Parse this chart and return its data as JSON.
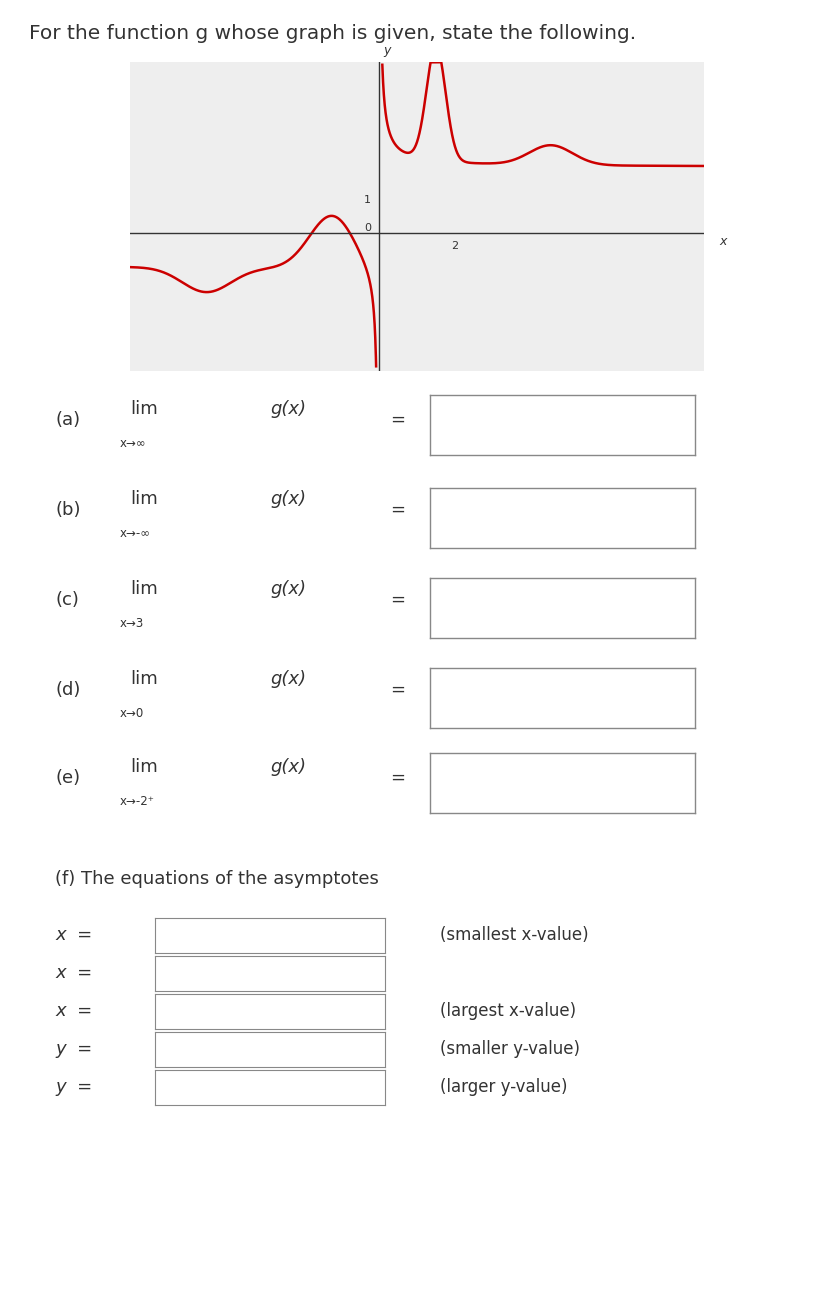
{
  "title": "For the function g whose graph is given, state the following.",
  "title_fontsize": 14.5,
  "background_color": "#ffffff",
  "graph": {
    "xlim": [
      -6.5,
      8.5
    ],
    "ylim": [
      -4.2,
      5.2
    ],
    "grid_color": "#c8c8c8",
    "axis_color": "#333333",
    "curve_color": "#cc0000",
    "curve_linewidth": 1.8,
    "bg_color": "#eeeeee"
  },
  "q_labels": [
    "(a)",
    "(b)",
    "(c)",
    "(d)",
    "(e)"
  ],
  "q_subs": [
    "x→∞",
    "x→-∞",
    "x→3",
    "x→0",
    "x→-2⁺"
  ],
  "asymptote_vars": [
    "x",
    "x",
    "x",
    "y",
    "y"
  ],
  "asymptote_notes": [
    "(smallest x-value)",
    "",
    "(largest x-value)",
    "(smaller y-value)",
    "(larger y-value)"
  ],
  "text_color": "#333333",
  "box_edge_color": "#888888"
}
